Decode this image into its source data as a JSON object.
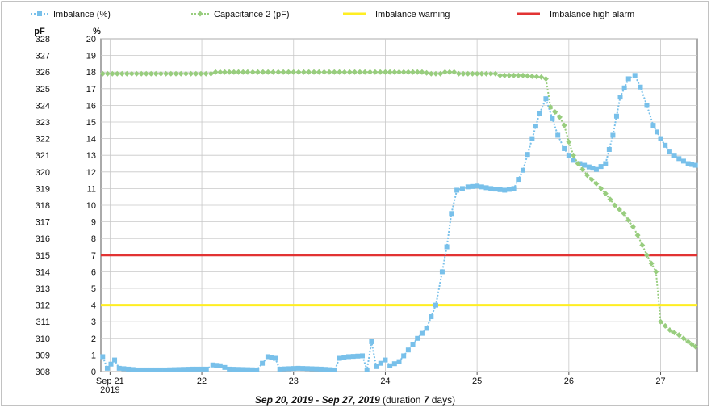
{
  "chart_data": {
    "type": "line",
    "title": "",
    "footer": {
      "range_start": "Sep 20, 2019",
      "range_sep": " - ",
      "range_end": "Sep 27, 2019",
      "duration_prefix": " (duration ",
      "duration_value": "7",
      "duration_suffix": " days)"
    },
    "y_left": {
      "unit": "pF",
      "ylim": [
        308,
        328
      ],
      "ticks": [
        308,
        309,
        310,
        311,
        312,
        313,
        314,
        315,
        316,
        317,
        318,
        319,
        320,
        321,
        322,
        323,
        324,
        325,
        326,
        327,
        328
      ]
    },
    "y_right": {
      "unit": "%",
      "ylim": [
        0,
        20
      ],
      "ticks": [
        0,
        1,
        2,
        3,
        4,
        5,
        6,
        7,
        8,
        9,
        10,
        11,
        12,
        13,
        14,
        15,
        16,
        17,
        18,
        19,
        20
      ]
    },
    "x_axis": {
      "xlim": [
        20.9,
        27.4
      ],
      "ticks": [
        {
          "value": 21,
          "label": "Sep 21",
          "sublabel": "2019"
        },
        {
          "value": 22,
          "label": "22",
          "sublabel": ""
        },
        {
          "value": 23,
          "label": "23",
          "sublabel": ""
        },
        {
          "value": 24,
          "label": "24",
          "sublabel": ""
        },
        {
          "value": 25,
          "label": "25",
          "sublabel": ""
        },
        {
          "value": 26,
          "label": "26",
          "sublabel": ""
        },
        {
          "value": 27,
          "label": "27",
          "sublabel": ""
        }
      ]
    },
    "grid": true,
    "legend_position": "top",
    "series": [
      {
        "name": "Imbalance (%)",
        "axis": "right",
        "color": "#78c0ea",
        "marker": "square",
        "points": [
          [
            20.92,
            0.9
          ],
          [
            20.97,
            0.2
          ],
          [
            21.05,
            0.7
          ],
          [
            21.1,
            0.2
          ],
          [
            21.3,
            0.1
          ],
          [
            21.6,
            0.1
          ],
          [
            21.9,
            0.15
          ],
          [
            22.05,
            0.15
          ],
          [
            22.12,
            0.4
          ],
          [
            22.2,
            0.35
          ],
          [
            22.3,
            0.15
          ],
          [
            22.6,
            0.1
          ],
          [
            22.72,
            0.9
          ],
          [
            22.8,
            0.8
          ],
          [
            22.85,
            0.15
          ],
          [
            23.05,
            0.2
          ],
          [
            23.3,
            0.15
          ],
          [
            23.45,
            0.1
          ],
          [
            23.5,
            0.8
          ],
          [
            23.6,
            0.9
          ],
          [
            23.75,
            0.95
          ],
          [
            23.8,
            0.1
          ],
          [
            23.85,
            1.8
          ],
          [
            23.9,
            0.3
          ],
          [
            24.0,
            0.7
          ],
          [
            24.05,
            0.35
          ],
          [
            24.15,
            0.6
          ],
          [
            24.25,
            1.3
          ],
          [
            24.35,
            2.0
          ],
          [
            24.45,
            2.6
          ],
          [
            24.55,
            4.0
          ],
          [
            24.62,
            6.0
          ],
          [
            24.67,
            7.5
          ],
          [
            24.72,
            9.5
          ],
          [
            24.78,
            10.9
          ],
          [
            24.9,
            11.1
          ],
          [
            25.0,
            11.15
          ],
          [
            25.15,
            11.0
          ],
          [
            25.3,
            10.9
          ],
          [
            25.4,
            11.0
          ],
          [
            25.5,
            12.1
          ],
          [
            25.6,
            14.0
          ],
          [
            25.68,
            15.5
          ],
          [
            25.75,
            16.4
          ],
          [
            25.82,
            15.2
          ],
          [
            25.88,
            14.2
          ],
          [
            25.95,
            13.4
          ],
          [
            26.0,
            13.0
          ],
          [
            26.05,
            12.7
          ],
          [
            26.12,
            12.5
          ],
          [
            26.22,
            12.3
          ],
          [
            26.3,
            12.15
          ],
          [
            26.4,
            12.5
          ],
          [
            26.48,
            14.2
          ],
          [
            26.56,
            16.5
          ],
          [
            26.65,
            17.6
          ],
          [
            26.72,
            17.8
          ],
          [
            26.78,
            17.1
          ],
          [
            26.85,
            16.0
          ],
          [
            26.92,
            14.8
          ],
          [
            27.0,
            14.0
          ],
          [
            27.1,
            13.2
          ],
          [
            27.2,
            12.8
          ],
          [
            27.3,
            12.5
          ],
          [
            27.38,
            12.4
          ]
        ]
      },
      {
        "name": "Capacitance 2 (pF)",
        "axis": "left",
        "color": "#98cd7e",
        "marker": "diamond",
        "points": [
          [
            20.92,
            325.9
          ],
          [
            21.5,
            325.9
          ],
          [
            22.1,
            325.9
          ],
          [
            22.15,
            326.0
          ],
          [
            22.5,
            326.0
          ],
          [
            23.0,
            326.0
          ],
          [
            23.5,
            326.0
          ],
          [
            24.0,
            326.0
          ],
          [
            24.4,
            326.0
          ],
          [
            24.5,
            325.9
          ],
          [
            24.6,
            325.9
          ],
          [
            24.65,
            326.0
          ],
          [
            24.75,
            326.0
          ],
          [
            24.8,
            325.9
          ],
          [
            25.2,
            325.9
          ],
          [
            25.25,
            325.8
          ],
          [
            25.5,
            325.8
          ],
          [
            25.7,
            325.7
          ],
          [
            25.75,
            325.6
          ],
          [
            25.8,
            323.9
          ],
          [
            25.9,
            323.3
          ],
          [
            25.95,
            322.8
          ],
          [
            26.0,
            321.8
          ],
          [
            26.05,
            321.0
          ],
          [
            26.1,
            320.5
          ],
          [
            26.2,
            319.8
          ],
          [
            26.3,
            319.3
          ],
          [
            26.4,
            318.7
          ],
          [
            26.5,
            318.0
          ],
          [
            26.6,
            317.5
          ],
          [
            26.7,
            316.7
          ],
          [
            26.75,
            316.2
          ],
          [
            26.85,
            315.0
          ],
          [
            26.9,
            314.5
          ],
          [
            26.95,
            314.0
          ],
          [
            27.0,
            311.0
          ],
          [
            27.1,
            310.5
          ],
          [
            27.2,
            310.2
          ],
          [
            27.3,
            309.8
          ],
          [
            27.38,
            309.5
          ]
        ]
      },
      {
        "name": "Imbalance warning",
        "axis": "right",
        "color": "#ffee22",
        "type": "threshold",
        "value": 4
      },
      {
        "name": "Imbalance high alarm",
        "axis": "right",
        "color": "#e23333",
        "type": "threshold",
        "value": 7
      }
    ]
  }
}
